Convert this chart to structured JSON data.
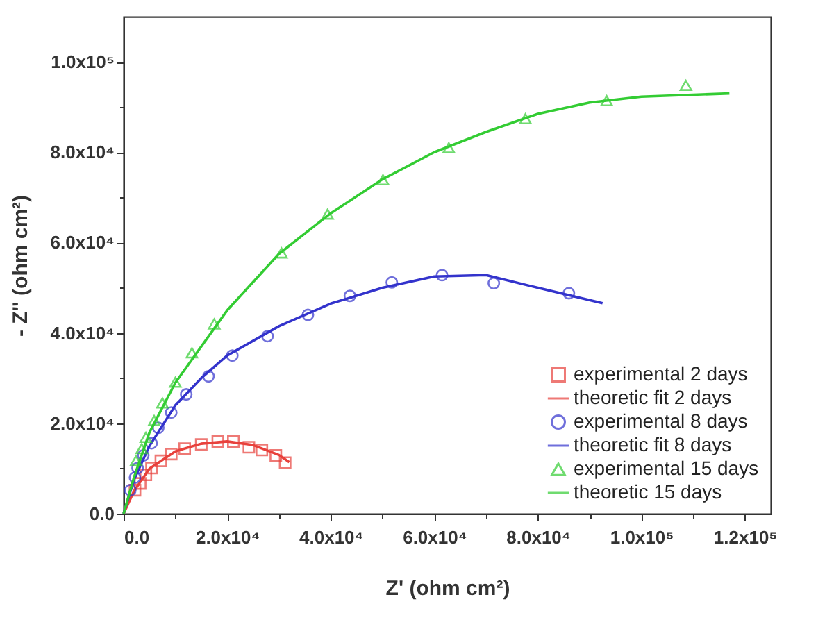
{
  "chart_data": {
    "type": "scatter",
    "xlabel": "Z' (ohm cm²)",
    "ylabel": "- Z\" (ohm cm²)",
    "legend": "bottom right",
    "grid": false,
    "xlim": [
      0,
      125000
    ],
    "ylim": [
      0,
      110000
    ],
    "xticks": [
      {
        "value": 0,
        "label": "0.0"
      },
      {
        "value": 10000,
        "label": null
      },
      {
        "value": 20000,
        "label": "2.0x10⁴"
      },
      {
        "value": 30000,
        "label": null
      },
      {
        "value": 40000,
        "label": "4.0x10⁴"
      },
      {
        "value": 50000,
        "label": null
      },
      {
        "value": 60000,
        "label": "6.0x10⁴"
      },
      {
        "value": 70000,
        "label": null
      },
      {
        "value": 80000,
        "label": "8.0x10⁴"
      },
      {
        "value": 90000,
        "label": null
      },
      {
        "value": 100000,
        "label": "1.0x10⁵"
      },
      {
        "value": 110000,
        "label": null
      },
      {
        "value": 120000,
        "label": "1.2x10⁵"
      }
    ],
    "yticks": [
      {
        "value": 0,
        "label": "0.0"
      },
      {
        "value": 10000,
        "label": null
      },
      {
        "value": 20000,
        "label": "2.0x10⁴"
      },
      {
        "value": 30000,
        "label": null
      },
      {
        "value": 40000,
        "label": "4.0x10⁴"
      },
      {
        "value": 50000,
        "label": null
      },
      {
        "value": 60000,
        "label": "6.0x10⁴"
      },
      {
        "value": 70000,
        "label": null
      },
      {
        "value": 80000,
        "label": "8.0x10⁴"
      },
      {
        "value": 90000,
        "label": null
      },
      {
        "value": 100000,
        "label": "1.0x10⁵"
      }
    ],
    "series": [
      {
        "name": "experimental 2 days",
        "marker": "square",
        "color": "#e8413c",
        "x": [
          2200,
          3200,
          4300,
          5400,
          7200,
          9200,
          11800,
          15000,
          18200,
          21200,
          24200,
          26700,
          29400,
          31200
        ],
        "values": [
          5200,
          6700,
          8600,
          10100,
          11700,
          13200,
          14400,
          15300,
          16000,
          16000,
          14700,
          14100,
          12900,
          11300
        ]
      },
      {
        "name": "theoretic fit 2 days",
        "type": "line",
        "color": "#e8413c",
        "x": [
          0,
          2000,
          5000,
          10000,
          15000,
          20000,
          25000,
          30000,
          32000
        ],
        "values": [
          0,
          5000,
          10000,
          13800,
          15500,
          16000,
          15200,
          13000,
          11400
        ]
      },
      {
        "name": "experimental 8 days",
        "marker": "circle",
        "color": "#3333cc",
        "x": [
          1300,
          2200,
          2700,
          3800,
          5400,
          6700,
          9200,
          12100,
          16400,
          21000,
          27800,
          35600,
          43700,
          51800,
          61500,
          71500,
          86000
        ],
        "values": [
          5200,
          8000,
          10100,
          12900,
          15600,
          19000,
          22400,
          26400,
          30400,
          35000,
          39300,
          44000,
          48200,
          51200,
          52800,
          51000,
          48800
        ]
      },
      {
        "name": "theoretic fit 8 days",
        "type": "line",
        "color": "#3333cc",
        "x": [
          0,
          2000,
          5000,
          10000,
          15000,
          20000,
          30000,
          40000,
          50000,
          60000,
          70000,
          80000,
          92500
        ],
        "values": [
          0,
          7500,
          15000,
          24000,
          30000,
          35000,
          41500,
          46500,
          50000,
          52500,
          52800,
          50000,
          46600
        ]
      },
      {
        "name": "experimental 15 days",
        "marker": "triangle",
        "color": "#33cc33",
        "x": [
          2400,
          3500,
          4300,
          5900,
          7500,
          10000,
          13200,
          17500,
          30500,
          39400,
          50100,
          62800,
          77600,
          93300,
          108600
        ],
        "values": [
          11700,
          14400,
          16900,
          20600,
          24500,
          29100,
          35600,
          42000,
          57700,
          66300,
          73900,
          81000,
          87400,
          91400,
          94800
        ]
      },
      {
        "name": "theoretic 15 days",
        "type": "line",
        "color": "#33cc33",
        "x": [
          0,
          2000,
          5000,
          10000,
          20000,
          30000,
          40000,
          50000,
          60000,
          70000,
          80000,
          90000,
          100000,
          117000
        ],
        "values": [
          0,
          8000,
          18000,
          29000,
          45000,
          57500,
          66500,
          74000,
          80000,
          84500,
          88500,
          91000,
          92300,
          93000
        ]
      }
    ]
  }
}
